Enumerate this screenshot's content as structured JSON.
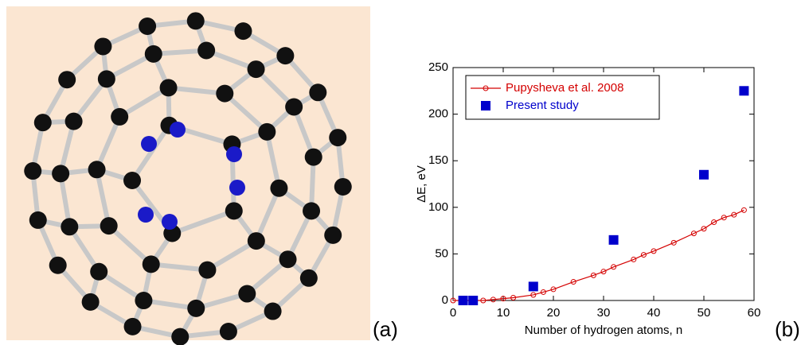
{
  "chart_data": {
    "type": "line",
    "x_label": "Number of hydrogen atoms, n",
    "y_label": "ΔE, eV",
    "xlim": [
      0,
      60
    ],
    "xticks": [
      0,
      10,
      20,
      30,
      40,
      50,
      60
    ],
    "ylim": [
      0,
      250
    ],
    "yticks": [
      0,
      50,
      100,
      150,
      200,
      250
    ],
    "legend": "upper left",
    "series": [
      {
        "name": "Pupysheva et al. 2008",
        "color": "#d40000",
        "marker": "open-circle",
        "line": true,
        "x": [
          0,
          2,
          4,
          6,
          8,
          10,
          12,
          16,
          18,
          20,
          24,
          28,
          30,
          32,
          36,
          38,
          40,
          44,
          48,
          50,
          52,
          54,
          56,
          58
        ],
        "values": [
          0,
          0,
          0,
          0,
          1,
          2,
          3,
          6,
          9,
          12,
          20,
          27,
          31,
          36,
          44,
          49,
          53,
          62,
          72,
          77,
          84,
          89,
          92,
          97
        ]
      },
      {
        "name": "Present study",
        "color": "#0000cc",
        "marker": "square",
        "line": false,
        "x": [
          2,
          4,
          16,
          32,
          50,
          58
        ],
        "values": [
          0,
          0,
          15,
          65,
          135,
          225
        ]
      }
    ]
  },
  "panel_labels": [
    "(a)",
    "(b)"
  ]
}
